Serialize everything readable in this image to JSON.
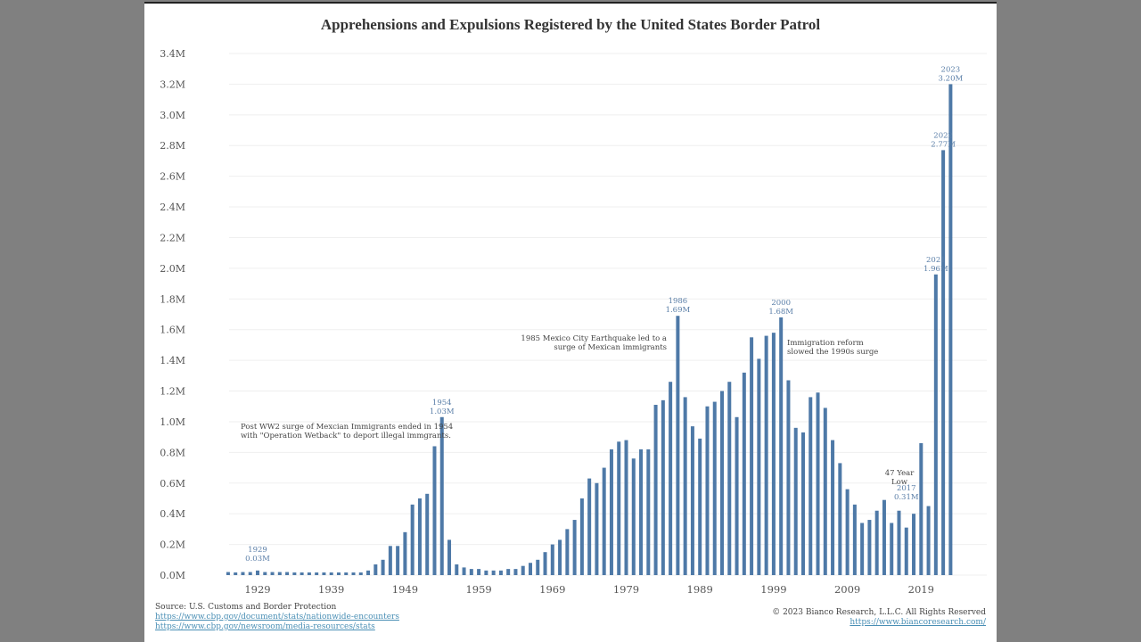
{
  "chart_data": {
    "type": "bar",
    "title": "Apprehensions and Expulsions Registered by the United States Border Patrol",
    "xlabel": "",
    "ylabel": "",
    "ylim": [
      0,
      3.4
    ],
    "y_unit": "M",
    "y_ticks": [
      "0.0M",
      "0.2M",
      "0.4M",
      "0.6M",
      "0.8M",
      "1.0M",
      "1.2M",
      "1.4M",
      "1.6M",
      "1.8M",
      "2.0M",
      "2.2M",
      "2.4M",
      "2.6M",
      "2.8M",
      "3.0M",
      "3.2M",
      "3.4M"
    ],
    "x_ticks": [
      "1929",
      "1939",
      "1949",
      "1959",
      "1969",
      "1979",
      "1989",
      "1999",
      "2009",
      "2019"
    ],
    "grid": true,
    "color": "#4e79a7",
    "x": [
      1925,
      1926,
      1927,
      1928,
      1929,
      1930,
      1931,
      1932,
      1933,
      1934,
      1935,
      1936,
      1937,
      1938,
      1939,
      1940,
      1941,
      1942,
      1943,
      1944,
      1945,
      1946,
      1947,
      1948,
      1949,
      1950,
      1951,
      1952,
      1953,
      1954,
      1955,
      1956,
      1957,
      1958,
      1959,
      1960,
      1961,
      1962,
      1963,
      1964,
      1965,
      1966,
      1967,
      1968,
      1969,
      1970,
      1971,
      1972,
      1973,
      1974,
      1975,
      1976,
      1977,
      1978,
      1979,
      1980,
      1981,
      1982,
      1983,
      1984,
      1985,
      1986,
      1987,
      1988,
      1989,
      1990,
      1991,
      1992,
      1993,
      1994,
      1995,
      1996,
      1997,
      1998,
      1999,
      2000,
      2001,
      2002,
      2003,
      2004,
      2005,
      2006,
      2007,
      2008,
      2009,
      2010,
      2011,
      2012,
      2013,
      2014,
      2015,
      2016,
      2017,
      2018,
      2019,
      2020,
      2021,
      2022,
      2023
    ],
    "values": [
      0.02,
      0.01,
      0.02,
      0.02,
      0.03,
      0.02,
      0.02,
      0.02,
      0.02,
      0.01,
      0.01,
      0.01,
      0.01,
      0.01,
      0.01,
      0.01,
      0.01,
      0.01,
      0.01,
      0.03,
      0.07,
      0.1,
      0.19,
      0.19,
      0.28,
      0.46,
      0.5,
      0.53,
      0.84,
      1.03,
      0.23,
      0.07,
      0.05,
      0.04,
      0.04,
      0.03,
      0.03,
      0.03,
      0.04,
      0.04,
      0.06,
      0.08,
      0.1,
      0.15,
      0.2,
      0.23,
      0.3,
      0.36,
      0.5,
      0.63,
      0.6,
      0.7,
      0.82,
      0.87,
      0.88,
      0.76,
      0.82,
      0.82,
      1.11,
      1.14,
      1.26,
      1.69,
      1.16,
      0.97,
      0.89,
      1.1,
      1.13,
      1.2,
      1.26,
      1.03,
      1.32,
      1.55,
      1.41,
      1.56,
      1.58,
      1.68,
      1.27,
      0.96,
      0.93,
      1.16,
      1.19,
      1.09,
      0.88,
      0.73,
      0.56,
      0.46,
      0.34,
      0.36,
      0.42,
      0.49,
      0.34,
      0.42,
      0.31,
      0.4,
      0.86,
      0.45,
      1.96,
      2.77,
      3.2
    ],
    "data_labels": [
      {
        "year": 1929,
        "label_year": "1929",
        "label_value": "0.03M"
      },
      {
        "year": 1954,
        "label_year": "1954",
        "label_value": "1.03M"
      },
      {
        "year": 1986,
        "label_year": "1986",
        "label_value": "1.69M"
      },
      {
        "year": 2000,
        "label_year": "2000",
        "label_value": "1.68M"
      },
      {
        "year": 2017,
        "label_year": "2017",
        "label_value": "0.31M"
      },
      {
        "year": 2021,
        "label_year": "2021",
        "label_value": "1.96M"
      },
      {
        "year": 2022,
        "label_year": "2022",
        "label_value": "2.77M"
      },
      {
        "year": 2023,
        "label_year": "2023",
        "label_value": "3.20M"
      }
    ],
    "annotations": [
      {
        "id": "ww2",
        "lines": [
          "Post WW2 surge of Mexcian Immigrants ended in 1954",
          "with \"Operation Wetback\" to deport illegal immgrants."
        ],
        "align": "left"
      },
      {
        "id": "quake",
        "lines": [
          "1985 Mexico City Earthquake led to a",
          "surge of Mexican immigrants"
        ],
        "align": "right"
      },
      {
        "id": "reform",
        "lines": [
          "Immigration reform",
          "slowed the 1990s surge"
        ],
        "align": "left"
      },
      {
        "id": "low",
        "lines": [
          "47 Year",
          "Low"
        ],
        "align": "center"
      }
    ]
  },
  "footer": {
    "source_label": "Source: U.S. Customs and Border Protection",
    "source_link_1": "https://www.cbp.gov/document/stats/nationwide-encounters",
    "source_link_2": "https://www.cbp.gov/newsroom/media-resources/stats",
    "copyright": "© 2023 Bianco Research, L.L.C. All Rights Reserved",
    "site_link": "https://www.biancoresearch.com/"
  }
}
